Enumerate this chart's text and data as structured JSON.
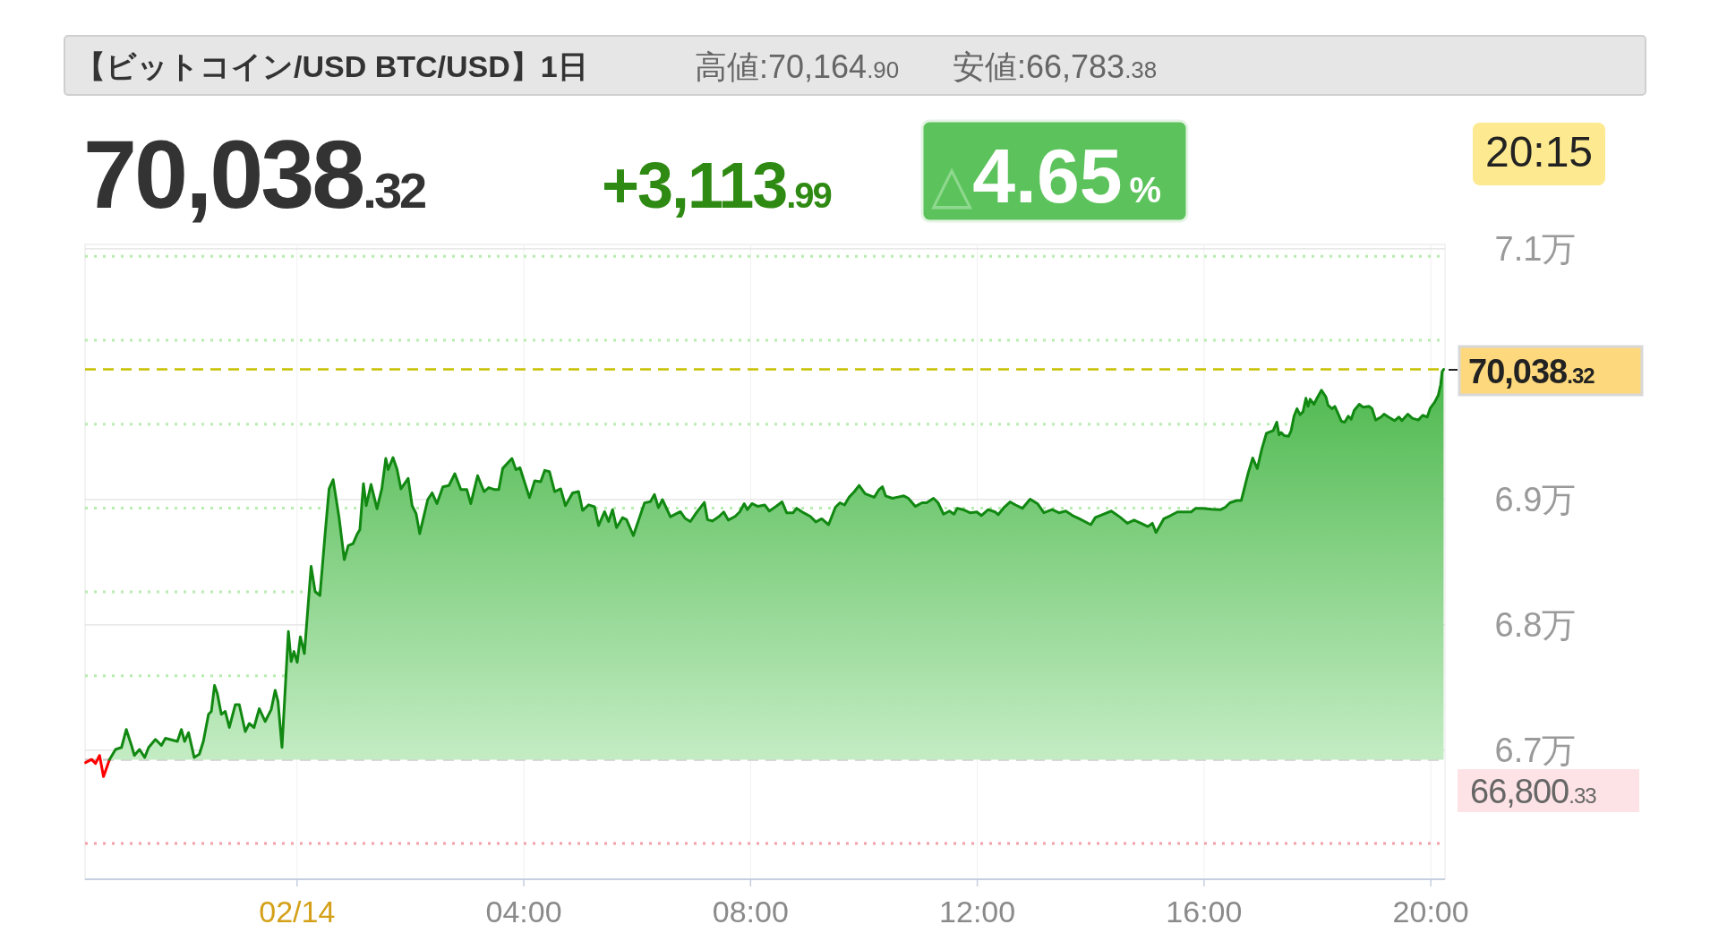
{
  "chart_data": {
    "type": "area",
    "title": "【ビットコイン/USD BTC/USD】1日",
    "annotations": [
      "高値:70,164.90",
      "安値:66,783.38",
      "70,038.32",
      "+3,113.99",
      "△4.65%",
      "20:15",
      "66,800.33",
      "70,038.32"
    ],
    "xlim": [
      -3.74,
      20.25
    ],
    "xticks": [
      {
        "value": 0,
        "label": "02/14"
      },
      {
        "value": 4,
        "label": "04:00"
      },
      {
        "value": 8,
        "label": "08:00"
      },
      {
        "value": 12,
        "label": "12:00"
      },
      {
        "value": 16,
        "label": "16:00"
      },
      {
        "value": 20,
        "label": "20:00"
      }
    ],
    "ylim": [
      6.597,
      7.1035
    ],
    "yticks": [
      {
        "value": 6.7,
        "label": "6.7万"
      },
      {
        "value": 6.8,
        "label": "6.8万"
      },
      {
        "value": 6.9,
        "label": "6.9万"
      },
      {
        "value": 7.1,
        "label": "7.1万"
      }
    ],
    "grid": true,
    "ref_lines": [
      {
        "axis": "y",
        "value": 6.6924,
        "color": "#cccccc",
        "line_style": "dashed"
      },
      {
        "axis": "y",
        "value": 7.0038,
        "color": "#c8c000",
        "line_style": "dashed"
      },
      {
        "axis": "y",
        "value": 6.7594,
        "color": "#b8ecb0",
        "line_style": "dotted"
      },
      {
        "axis": "y",
        "value": 6.8263,
        "color": "#b8ecb0",
        "line_style": "dotted"
      },
      {
        "axis": "y",
        "value": 6.8932,
        "color": "#b8ecb0",
        "line_style": "dotted"
      },
      {
        "axis": "y",
        "value": 6.9601,
        "color": "#b8ecb0",
        "line_style": "dotted"
      },
      {
        "axis": "y",
        "value": 7.0271,
        "color": "#b8ecb0",
        "line_style": "dotted"
      },
      {
        "axis": "y",
        "value": 7.094,
        "color": "#b8ecb0",
        "line_style": "dotted"
      },
      {
        "axis": "y",
        "value": 6.6255,
        "color": "#f4a0a8",
        "line_style": "dotted"
      }
    ],
    "series": [
      {
        "type": "line",
        "color": "#ff0000",
        "x": [
          -3.73,
          -3.625,
          -3.555,
          -3.484,
          -3.414,
          -3.308
        ],
        "values": [
          6.6901,
          6.6926,
          6.6894,
          6.6958,
          6.6789,
          6.6926
        ]
      },
      {
        "color": "#118811",
        "x": [
          -3.308,
          -3.202,
          -3.097,
          -3.012,
          -2.921,
          -2.871,
          -2.78,
          -2.688,
          -2.618,
          -2.498,
          -2.393,
          -2.322,
          -2.111,
          -2.041,
          -1.984,
          -1.914,
          -1.815,
          -1.724,
          -1.653,
          -1.562,
          -1.512,
          -1.456,
          -1.407,
          -1.336,
          -1.266,
          -1.195,
          -1.09,
          -1.019,
          -0.914,
          -0.843,
          -0.759,
          -0.667,
          -0.562,
          -0.456,
          -0.386,
          -0.336,
          -0.266,
          -0.153,
          -0.104,
          -0.055,
          0.002,
          0.058,
          0.129,
          0.248,
          0.319,
          0.403,
          0.495,
          0.565,
          0.636,
          0.741,
          0.833,
          0.903,
          0.988,
          1.058,
          1.108,
          1.171,
          1.22,
          1.305,
          1.41,
          1.495,
          1.565,
          1.607,
          1.692,
          1.762,
          1.833,
          1.96,
          2.03,
          2.1,
          2.164,
          2.305,
          2.382,
          2.467,
          2.572,
          2.678,
          2.783,
          2.889,
          2.995,
          3.065,
          3.185,
          3.298,
          3.382,
          3.488,
          3.558,
          3.628,
          3.79,
          3.861,
          3.931,
          4.1,
          4.192,
          4.298,
          4.368,
          4.453,
          4.544,
          4.65,
          4.734,
          4.861,
          4.966,
          5.037,
          5.143,
          5.248,
          5.319,
          5.424,
          5.495,
          5.565,
          5.636,
          5.741,
          5.812,
          5.932,
          6.129,
          6.234,
          6.304,
          6.375,
          6.445,
          6.586,
          6.762,
          6.847,
          6.938,
          7.044,
          7.185,
          7.24,
          7.325,
          7.446,
          7.526,
          7.606,
          7.727,
          7.808,
          7.888,
          7.944,
          8.025,
          8.129,
          8.25,
          8.331,
          8.451,
          8.556,
          8.636,
          8.749,
          8.813,
          8.934,
          9.055,
          9.151,
          9.256,
          9.376,
          9.497,
          9.577,
          9.658,
          9.738,
          9.835,
          9.915,
          10.02,
          10.181,
          10.261,
          10.326,
          10.382,
          10.503,
          10.583,
          10.704,
          10.784,
          10.905,
          11.026,
          11.106,
          11.227,
          11.307,
          11.404,
          11.508,
          11.589,
          11.645,
          11.75,
          11.87,
          11.991,
          12.071,
          12.192,
          12.313,
          12.369,
          12.474,
          12.578,
          12.675,
          12.795,
          12.932,
          13.061,
          13.174,
          13.319,
          13.439,
          13.56,
          13.681,
          13.801,
          14.002,
          14.083,
          14.203,
          14.364,
          14.525,
          14.646,
          14.766,
          14.887,
          15.008,
          15.088,
          15.152,
          15.289,
          15.41,
          15.531,
          15.651,
          15.772,
          15.852,
          15.973,
          16.134,
          16.295,
          16.375,
          16.456,
          16.576,
          16.657,
          16.778,
          16.858,
          16.939,
          17.019,
          17.1,
          17.22,
          17.282,
          17.324,
          17.361,
          17.413,
          17.492,
          17.534,
          17.587,
          17.639,
          17.692,
          17.745,
          17.797,
          17.834,
          17.871,
          17.939,
          17.992,
          18.071,
          18.149,
          18.186,
          18.255,
          18.307,
          18.36,
          18.423,
          18.481,
          18.544,
          18.596,
          18.649,
          18.738,
          18.807,
          18.912,
          18.964,
          19.027,
          19.122,
          19.175,
          19.253,
          19.359,
          19.437,
          19.49,
          19.595,
          19.674,
          19.779,
          19.858,
          19.937,
          19.99,
          20.068,
          20.131,
          20.173,
          20.2,
          20.226
        ],
        "values": [
          6.6926,
          6.7006,
          6.7022,
          6.7165,
          6.7038,
          6.6958,
          6.7006,
          6.6942,
          6.7022,
          6.7086,
          6.7038,
          6.7095,
          6.707,
          6.7165,
          6.707,
          6.714,
          6.6942,
          6.6968,
          6.707,
          6.7286,
          6.7309,
          6.7516,
          6.7452,
          6.7286,
          6.7309,
          6.7181,
          6.7363,
          6.7363,
          6.7149,
          6.7213,
          6.7181,
          6.7331,
          6.7229,
          6.7325,
          6.7478,
          6.7389,
          6.7022,
          6.7947,
          6.7707,
          6.7787,
          6.7701,
          6.7905,
          6.7771,
          6.8466,
          6.8265,
          6.8234,
          6.8728,
          6.9085,
          6.9158,
          6.8856,
          6.852,
          6.8632,
          6.8648,
          6.8722,
          6.876,
          6.9126,
          6.8951,
          6.912,
          6.8926,
          6.9085,
          6.9327,
          6.9238,
          6.9334,
          6.9244,
          6.9085,
          6.9168,
          6.8951,
          6.8887,
          6.8728,
          6.8999,
          6.9053,
          6.8967,
          6.9101,
          6.9111,
          6.9206,
          6.9079,
          6.9079,
          6.8967,
          6.919,
          6.9063,
          6.9095,
          6.9079,
          6.9079,
          6.9248,
          6.9327,
          6.9238,
          6.9254,
          6.9015,
          6.9149,
          6.9142,
          6.9232,
          6.9222,
          6.9063,
          6.9085,
          6.8951,
          6.9053,
          6.9063,
          6.8913,
          6.8957,
          6.8942,
          6.8792,
          6.8903,
          6.8824,
          6.8919,
          6.8776,
          6.8855,
          6.8839,
          6.8712,
          6.8973,
          6.8983,
          6.904,
          6.8935,
          6.8999,
          6.8862,
          6.8903,
          6.8849,
          6.8824,
          6.8894,
          6.8977,
          6.884,
          6.8828,
          6.8865,
          6.8901,
          6.8836,
          6.8865,
          6.8901,
          6.8967,
          6.8919,
          6.8967,
          6.8945,
          6.8956,
          6.8908,
          6.8945,
          6.8981,
          6.8894,
          6.8894,
          6.893,
          6.8894,
          6.8865,
          6.8821,
          6.8846,
          6.8799,
          6.8938,
          6.8974,
          6.8956,
          6.9018,
          6.9065,
          6.9112,
          6.9047,
          6.9018,
          6.9076,
          6.9102,
          6.9029,
          6.901,
          6.9018,
          6.9029,
          6.901,
          6.8945,
          6.8974,
          6.8974,
          6.901,
          6.8974,
          6.8883,
          6.8908,
          6.8883,
          6.893,
          6.8919,
          6.8894,
          6.8901,
          6.8872,
          6.8919,
          6.8901,
          6.8879,
          6.8938,
          6.8981,
          6.8956,
          6.893,
          6.9003,
          6.8967,
          6.8894,
          6.8919,
          6.8894,
          6.8908,
          6.8872,
          6.8846,
          6.8799,
          6.8857,
          6.8879,
          6.8908,
          6.8857,
          6.881,
          6.8836,
          6.881,
          6.8784,
          6.881,
          6.8737,
          6.8846,
          6.8872,
          6.8901,
          6.8901,
          6.8901,
          6.893,
          6.893,
          6.8923,
          6.8919,
          6.8938,
          6.8974,
          6.8992,
          6.8992,
          6.9211,
          6.9331,
          6.9247,
          6.9404,
          6.9528,
          6.955,
          6.9617,
          6.9515,
          6.9534,
          6.951,
          6.9505,
          6.9546,
          6.9665,
          6.9724,
          6.9677,
          6.97,
          6.9808,
          6.9743,
          6.98,
          6.976,
          6.9808,
          6.9872,
          6.9819,
          6.9753,
          6.9724,
          6.9743,
          6.9689,
          6.9624,
          6.9617,
          6.9665,
          6.9641,
          6.9712,
          6.976,
          6.9736,
          6.9743,
          6.9724,
          6.9634,
          6.9658,
          6.9681,
          6.9658,
          6.9629,
          6.9658,
          6.9629,
          6.9681,
          6.9648,
          6.9634,
          6.9672,
          6.9658,
          6.9729,
          6.9777,
          6.9831,
          6.9915,
          7.0022,
          7.0038
        ]
      }
    ]
  }
}
